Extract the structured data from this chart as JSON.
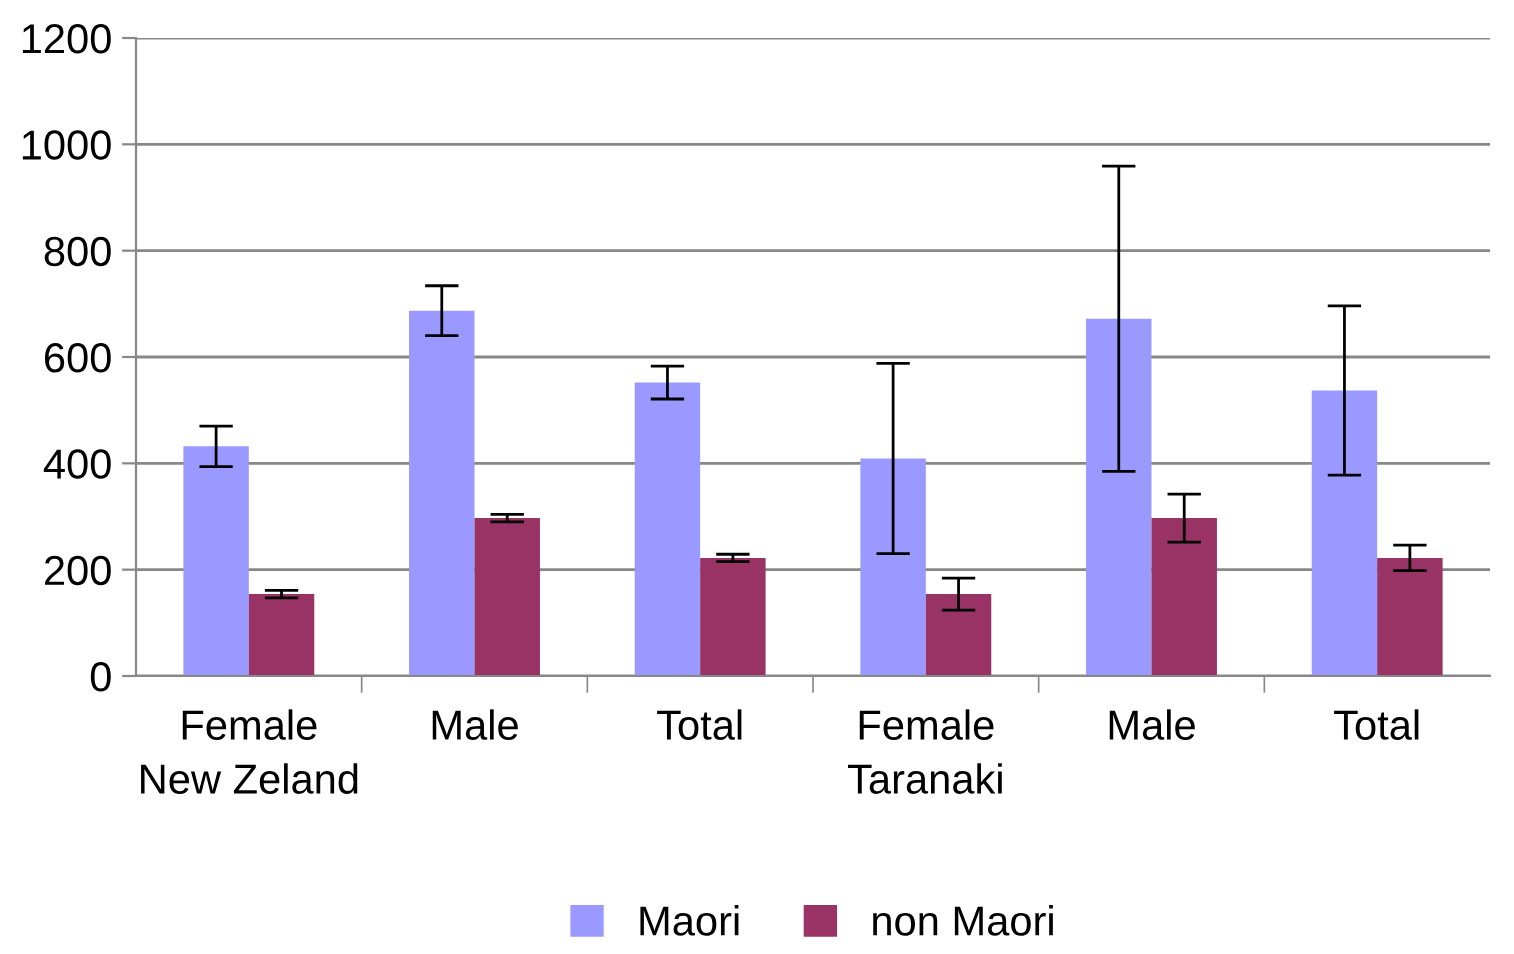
{
  "chart_data": {
    "type": "bar",
    "categories": [
      "Female\nNew Zeland",
      "Male",
      "Total",
      "Female\nTaranaki",
      "Male",
      "Total"
    ],
    "series": [
      {
        "name": "Maori",
        "color": "#9999ff",
        "values": [
          432,
          687,
          552,
          409,
          672,
          537
        ],
        "errors": [
          38,
          47,
          31,
          179,
          287,
          159
        ]
      },
      {
        "name": "non Maori",
        "color": "#993366",
        "values": [
          154,
          297,
          222,
          154,
          297,
          222
        ],
        "errors": [
          7,
          7,
          7,
          30,
          45,
          24
        ]
      }
    ],
    "ylim": [
      0,
      1200
    ],
    "yticks": [
      0,
      200,
      400,
      600,
      800,
      1000,
      1200
    ],
    "grid": "y",
    "legend": "bottom"
  }
}
